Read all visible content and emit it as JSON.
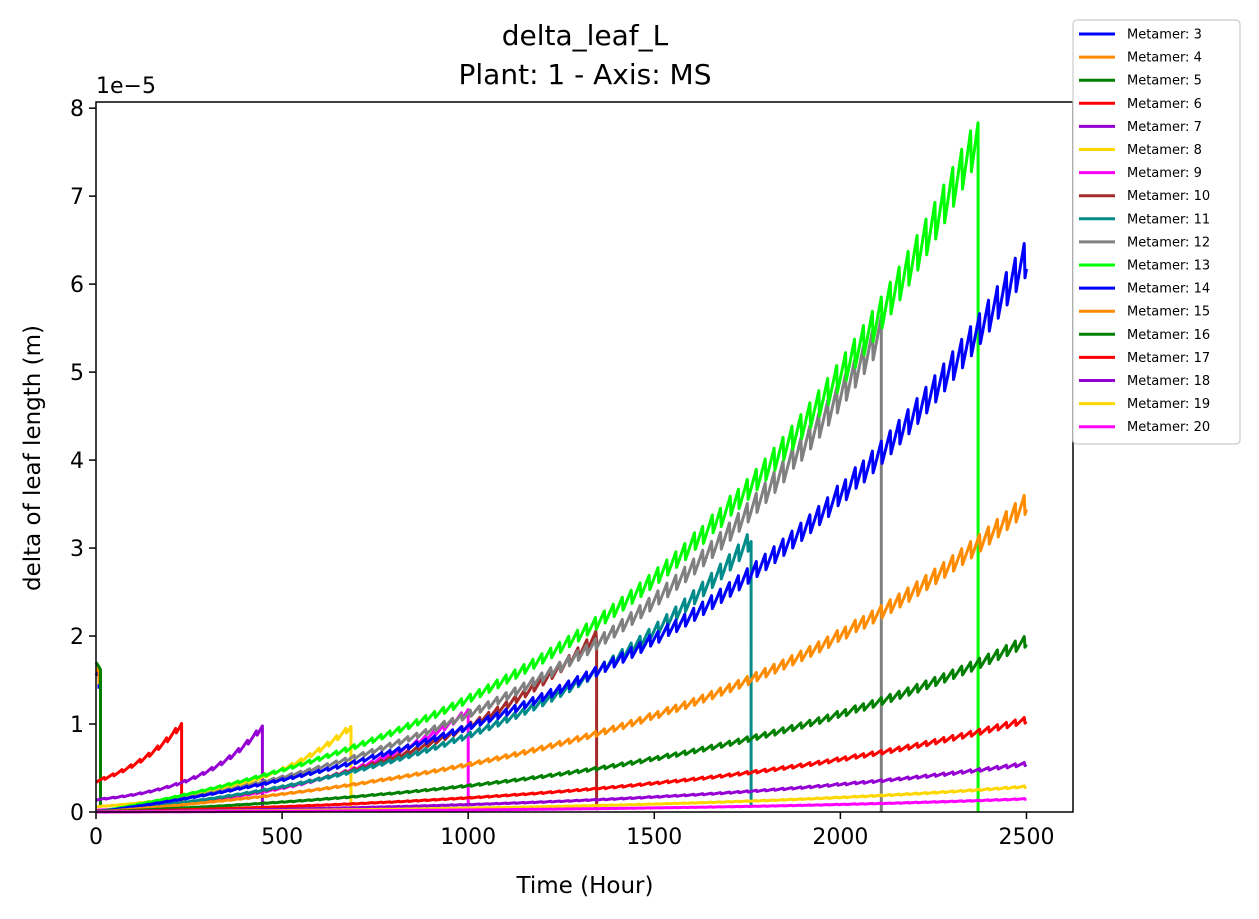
{
  "chart_data": {
    "type": "line",
    "title": "delta_leaf_L",
    "subtitle": "Plant: 1 - Axis: MS",
    "xlabel": "Time (Hour)",
    "ylabel": "delta of leaf length (m)",
    "y_offset_label": "1e−5",
    "xlim": [
      0,
      2625
    ],
    "ylim": [
      0,
      8.07
    ],
    "xticks": [
      "0",
      "500",
      "1000",
      "1500",
      "2000",
      "2500"
    ],
    "xtick_values": [
      0,
      500,
      1000,
      1500,
      2000,
      2500
    ],
    "yticks": [
      "0",
      "1",
      "2",
      "3",
      "4",
      "5",
      "6",
      "7",
      "8"
    ],
    "ytick_values": [
      0,
      1,
      2,
      3,
      4,
      5,
      6,
      7,
      8
    ],
    "grid": false,
    "legend_position": "outside top-right",
    "series": [
      {
        "name": "Metamer: 3",
        "color": "#0000ff",
        "start_hour": 0,
        "end_hour": 8,
        "start_value": 1.55,
        "end_value": 1.62,
        "drop_to": 1.4
      },
      {
        "name": "Metamer: 4",
        "color": "#ff8c00",
        "start_hour": 0,
        "end_hour": 8,
        "start_value": 1.6,
        "end_value": 1.65,
        "drop_to": 1.45
      },
      {
        "name": "Metamer: 5",
        "color": "#008000",
        "start_hour": 0,
        "end_hour": 12,
        "start_value": 1.7,
        "end_value": 1.62,
        "drop_to": 0.08
      },
      {
        "name": "Metamer: 6",
        "color": "#ff0000",
        "start_hour": 0,
        "end_hour": 230,
        "start_value": 0.35,
        "end_value": 1.0,
        "drop_to": 0.0
      },
      {
        "name": "Metamer: 7",
        "color": "#9400d3",
        "start_hour": 0,
        "end_hour": 447,
        "start_value": 0.14,
        "end_value": 0.97,
        "drop_to": 0.0
      },
      {
        "name": "Metamer: 8",
        "color": "#ffd700",
        "start_hour": 0,
        "end_hour": 685,
        "start_value": 0.06,
        "end_value": 0.97,
        "drop_to": 0.0
      },
      {
        "name": "Metamer: 9",
        "color": "#ff00ff",
        "start_hour": 0,
        "end_hour": 1000,
        "start_value": 0.02,
        "end_value": 1.15,
        "drop_to": 0.0
      },
      {
        "name": "Metamer: 10",
        "color": "#a52a2a",
        "start_hour": 0,
        "end_hour": 1345,
        "start_value": 0.01,
        "end_value": 2.0,
        "drop_to": 0.02
      },
      {
        "name": "Metamer: 11",
        "color": "#008b8b",
        "start_hour": 0,
        "end_hour": 1760,
        "start_value": 0.0,
        "end_value": 3.11,
        "drop_to": 0.05
      },
      {
        "name": "Metamer: 12",
        "color": "#808080",
        "start_hour": 0,
        "end_hour": 2110,
        "start_value": 0.0,
        "end_value": 5.48,
        "drop_to": 0.0
      },
      {
        "name": "Metamer: 13",
        "color": "#00ff00",
        "start_hour": 0,
        "end_hour": 2370,
        "start_value": 0.0,
        "end_value": 7.7,
        "drop_to": 0.0
      },
      {
        "name": "Metamer: 14",
        "color": "#0000ff",
        "start_hour": 0,
        "end_hour": 2500,
        "start_value": 0.0,
        "end_value": 6.32,
        "drop_to": null
      },
      {
        "name": "Metamer: 15",
        "color": "#ff8c00",
        "start_hour": 0,
        "end_hour": 2500,
        "start_value": 0.0,
        "end_value": 3.52,
        "drop_to": null
      },
      {
        "name": "Metamer: 16",
        "color": "#008000",
        "start_hour": 0,
        "end_hour": 2500,
        "start_value": 0.0,
        "end_value": 1.95,
        "drop_to": null
      },
      {
        "name": "Metamer: 17",
        "color": "#ff0000",
        "start_hour": 0,
        "end_hour": 2500,
        "start_value": 0.0,
        "end_value": 1.05,
        "drop_to": null
      },
      {
        "name": "Metamer: 18",
        "color": "#9400d3",
        "start_hour": 0,
        "end_hour": 2500,
        "start_value": 0.0,
        "end_value": 0.55,
        "drop_to": null
      },
      {
        "name": "Metamer: 19",
        "color": "#ffd700",
        "start_hour": 0,
        "end_hour": 2500,
        "start_value": 0.0,
        "end_value": 0.29,
        "drop_to": null
      },
      {
        "name": "Metamer: 20",
        "color": "#ff00ff",
        "start_hour": 0,
        "end_hour": 2500,
        "start_value": 0.0,
        "end_value": 0.15,
        "drop_to": null
      }
    ]
  }
}
